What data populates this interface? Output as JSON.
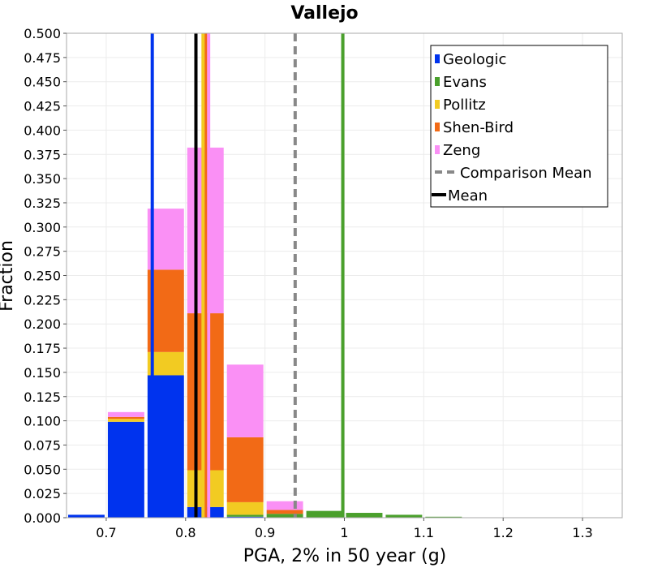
{
  "chart_data": {
    "type": "bar",
    "stacked": true,
    "title": "Vallejo",
    "xlabel": "PGA, 2% in 50 year (g)",
    "ylabel": "Fraction",
    "xlim": [
      0.65,
      1.35
    ],
    "ylim": [
      0,
      0.5
    ],
    "bin_width": 0.05,
    "x_ticks": [
      0.7,
      0.8,
      0.9,
      1.0,
      1.1,
      1.2,
      1.3
    ],
    "x_tick_labels": [
      "0.7",
      "0.8",
      "0.9",
      "1",
      "1.1",
      "1.2",
      "1.3"
    ],
    "y_ticks": [
      0,
      0.025,
      0.05,
      0.075,
      0.1,
      0.125,
      0.15,
      0.175,
      0.2,
      0.225,
      0.25,
      0.275,
      0.3,
      0.325,
      0.35,
      0.375,
      0.4,
      0.425,
      0.45,
      0.475,
      0.5
    ],
    "y_tick_labels": [
      "0.000",
      "0.025",
      "0.050",
      "0.075",
      "0.100",
      "0.125",
      "0.150",
      "0.175",
      "0.200",
      "0.225",
      "0.250",
      "0.275",
      "0.300",
      "0.325",
      "0.350",
      "0.375",
      "0.400",
      "0.425",
      "0.450",
      "0.475",
      "0.500"
    ],
    "bin_centers": [
      0.675,
      0.725,
      0.775,
      0.825,
      0.875,
      0.925,
      0.975,
      1.025,
      1.075,
      1.125
    ],
    "series": [
      {
        "name": "Geologic",
        "color": "#0033ee",
        "values": [
          0.003,
          0.099,
          0.147,
          0.011,
          0.001,
          0.0,
          0.0,
          0.0,
          0.0,
          0.0
        ]
      },
      {
        "name": "Evans",
        "color": "#4aa02c",
        "values": [
          0.0,
          0.0,
          0.0,
          0.0,
          0.002,
          0.004,
          0.007,
          0.005,
          0.003,
          0.001
        ]
      },
      {
        "name": "Pollitz",
        "color": "#f2cb22",
        "values": [
          0.0,
          0.003,
          0.024,
          0.038,
          0.013,
          0.0,
          0.0,
          0.0,
          0.0,
          0.0
        ]
      },
      {
        "name": "Shen-Bird",
        "color": "#f26a16",
        "values": [
          0.0,
          0.002,
          0.085,
          0.162,
          0.067,
          0.004,
          0.0,
          0.0,
          0.0,
          0.0
        ]
      },
      {
        "name": "Zeng",
        "color": "#fa90f5",
        "values": [
          0.0,
          0.005,
          0.063,
          0.171,
          0.075,
          0.009,
          0.0,
          0.0,
          0.0,
          0.0
        ]
      }
    ],
    "mean_lines": [
      {
        "series": "Geologic",
        "x": 0.758
      },
      {
        "series": "Zeng",
        "x": 0.829
      },
      {
        "series": "Shen-Bird",
        "x": 0.825
      },
      {
        "series": "Pollitz",
        "x": 0.822
      },
      {
        "series": "Evans",
        "x": 0.998
      }
    ],
    "comparison_mean": {
      "name": "Comparison Mean",
      "x": 0.938,
      "color": "#888888"
    },
    "mean": {
      "name": "Mean",
      "x": 0.813,
      "color": "#000000"
    },
    "legend_position": "top-right",
    "grid": true
  }
}
